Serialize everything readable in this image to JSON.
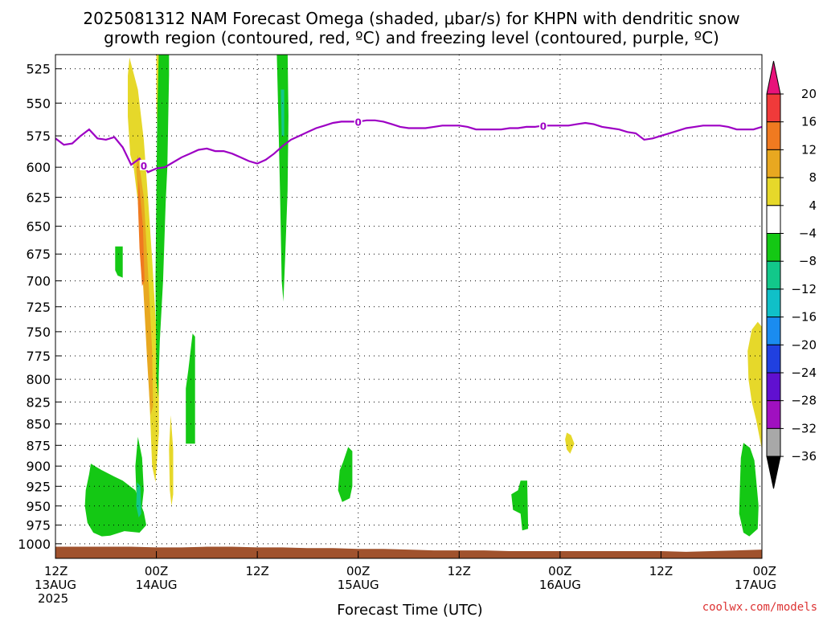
{
  "title": {
    "line1": "2025081312 NAM Forecast Omega (shaded, μbar/s) for KHPN with dendritic snow",
    "line2": "growth region (contoured, red, ºC) and freezing level (contoured, purple, ºC)"
  },
  "credit": "coolwx.com/models",
  "chart_data": {
    "type": "heatmap",
    "xlabel": "Forecast Time (UTC)",
    "xlim": [
      0,
      84
    ],
    "ylim": [
      1020,
      515
    ],
    "y_scale": "log-pressure",
    "grid": true,
    "y_ticks": [
      525,
      550,
      575,
      600,
      625,
      650,
      675,
      700,
      725,
      750,
      775,
      800,
      825,
      850,
      875,
      900,
      925,
      950,
      975,
      1000
    ],
    "x_ticks": [
      {
        "x": 0,
        "lines": [
          "12Z",
          "13AUG",
          "2025"
        ]
      },
      {
        "x": 12,
        "lines": [
          "00Z",
          "14AUG"
        ]
      },
      {
        "x": 24,
        "lines": [
          "12Z"
        ]
      },
      {
        "x": 36,
        "lines": [
          "00Z",
          "15AUG"
        ]
      },
      {
        "x": 48,
        "lines": [
          "12Z"
        ]
      },
      {
        "x": 60,
        "lines": [
          "00Z",
          "16AUG"
        ]
      },
      {
        "x": 72,
        "lines": [
          "12Z"
        ]
      },
      {
        "x": 84,
        "lines": [
          "00Z",
          "17AUG"
        ]
      }
    ],
    "colorbar": {
      "labels": [
        "20",
        "16",
        "12",
        "8",
        "4",
        "−4",
        "−8",
        "−12",
        "−16",
        "−20",
        "−24",
        "−28",
        "−32",
        "−36"
      ],
      "colors": {
        "top_arrow": "#e8127a",
        "c16_20": "#f03a3a",
        "c12_16": "#f07a20",
        "c8_12": "#e8a820",
        "c4_8": "#e6d82a",
        "c_neg4_4": "#ffffff",
        "c_neg8_neg4": "#14c814",
        "c_neg12_neg8": "#12c88a",
        "c_neg16_neg12": "#10c0c8",
        "c_neg20_neg16": "#1a8cf0",
        "c_neg24_neg20": "#2040e0",
        "c_neg28_neg24": "#6010d0",
        "c_neg32_neg28": "#a010c0",
        "c_neg36_neg32": "#a8a8a8",
        "bottom_arrow": "#000000"
      }
    },
    "freezing_level": {
      "color": "#9d00c4",
      "label": "0",
      "label_x": [
        10.5,
        36,
        58
      ],
      "points": [
        [
          0,
          577
        ],
        [
          1,
          582
        ],
        [
          2,
          581
        ],
        [
          3,
          575
        ],
        [
          4,
          570
        ],
        [
          5,
          577
        ],
        [
          6,
          578
        ],
        [
          7,
          576
        ],
        [
          8,
          584
        ],
        [
          9,
          598
        ],
        [
          10,
          593
        ],
        [
          11,
          604
        ],
        [
          12,
          601
        ],
        [
          13,
          600
        ],
        [
          14,
          596
        ],
        [
          15,
          592
        ],
        [
          16,
          589
        ],
        [
          17,
          586
        ],
        [
          18,
          585
        ],
        [
          19,
          587
        ],
        [
          20,
          587
        ],
        [
          21,
          589
        ],
        [
          22,
          592
        ],
        [
          23,
          595
        ],
        [
          24,
          597
        ],
        [
          25,
          594
        ],
        [
          26,
          589
        ],
        [
          27,
          583
        ],
        [
          28,
          578
        ],
        [
          29,
          575
        ],
        [
          30,
          572
        ],
        [
          31,
          569
        ],
        [
          32,
          567
        ],
        [
          33,
          565
        ],
        [
          34,
          564
        ],
        [
          35,
          564
        ],
        [
          36,
          564
        ],
        [
          37,
          563
        ],
        [
          38,
          563
        ],
        [
          39,
          564
        ],
        [
          40,
          566
        ],
        [
          41,
          568
        ],
        [
          42,
          569
        ],
        [
          43,
          569
        ],
        [
          44,
          569
        ],
        [
          45,
          568
        ],
        [
          46,
          567
        ],
        [
          47,
          567
        ],
        [
          48,
          567
        ],
        [
          49,
          568
        ],
        [
          50,
          570
        ],
        [
          51,
          570
        ],
        [
          52,
          570
        ],
        [
          53,
          570
        ],
        [
          54,
          569
        ],
        [
          55,
          569
        ],
        [
          56,
          568
        ],
        [
          57,
          568
        ],
        [
          58,
          567
        ],
        [
          59,
          567
        ],
        [
          60,
          567
        ],
        [
          61,
          567
        ],
        [
          62,
          566
        ],
        [
          63,
          565
        ],
        [
          64,
          566
        ],
        [
          65,
          568
        ],
        [
          66,
          569
        ],
        [
          67,
          570
        ],
        [
          68,
          572
        ],
        [
          69,
          573
        ],
        [
          70,
          578
        ],
        [
          71,
          577
        ],
        [
          72,
          575
        ],
        [
          73,
          573
        ],
        [
          74,
          571
        ],
        [
          75,
          569
        ],
        [
          76,
          568
        ],
        [
          77,
          567
        ],
        [
          78,
          567
        ],
        [
          79,
          567
        ],
        [
          80,
          568
        ],
        [
          81,
          570
        ],
        [
          82,
          570
        ],
        [
          83,
          570
        ],
        [
          84,
          568
        ]
      ]
    },
    "terrain": {
      "color": "#a0522d",
      "points": [
        [
          0,
          1004
        ],
        [
          3,
          1004
        ],
        [
          6,
          1004
        ],
        [
          9,
          1004
        ],
        [
          12,
          1005
        ],
        [
          15,
          1005
        ],
        [
          18,
          1004
        ],
        [
          21,
          1004
        ],
        [
          24,
          1005
        ],
        [
          27,
          1005
        ],
        [
          30,
          1006
        ],
        [
          33,
          1006
        ],
        [
          36,
          1007
        ],
        [
          39,
          1007
        ],
        [
          42,
          1008
        ],
        [
          45,
          1009
        ],
        [
          48,
          1009
        ],
        [
          51,
          1009
        ],
        [
          54,
          1010
        ],
        [
          57,
          1010
        ],
        [
          60,
          1010
        ],
        [
          63,
          1010
        ],
        [
          66,
          1010
        ],
        [
          69,
          1010
        ],
        [
          72,
          1010
        ],
        [
          75,
          1011
        ],
        [
          78,
          1010
        ],
        [
          81,
          1009
        ],
        [
          84,
          1008
        ]
      ]
    },
    "omega_regions": [
      {
        "level": "c_neg8_neg4",
        "points": [
          [
            4.2,
            897
          ],
          [
            5.5,
            905
          ],
          [
            7,
            913
          ],
          [
            8,
            918
          ],
          [
            9.5,
            930
          ],
          [
            10.5,
            958
          ],
          [
            10.8,
            975
          ],
          [
            10,
            985
          ],
          [
            8.2,
            983
          ],
          [
            6.5,
            989
          ],
          [
            5.5,
            990
          ],
          [
            4.5,
            985
          ],
          [
            3.8,
            972
          ],
          [
            3.5,
            950
          ],
          [
            3.6,
            930
          ],
          [
            4,
            910
          ]
        ]
      },
      {
        "level": "c_neg8_neg4",
        "points": [
          [
            9.8,
            865
          ],
          [
            10.3,
            890
          ],
          [
            10.5,
            930
          ],
          [
            10.2,
            960
          ],
          [
            9.8,
            965
          ],
          [
            9.6,
            930
          ],
          [
            9.5,
            900
          ]
        ]
      },
      {
        "level": "c_neg12_neg8",
        "points": [
          [
            9.7,
            920
          ],
          [
            10.1,
            925
          ],
          [
            10.2,
            960
          ],
          [
            9.9,
            965
          ],
          [
            9.6,
            950
          ]
        ]
      },
      {
        "level": "c_neg8_neg4",
        "points": [
          [
            7.1,
            668
          ],
          [
            8,
            668
          ],
          [
            8,
            697
          ],
          [
            7.4,
            695
          ],
          [
            7.1,
            690
          ]
        ]
      },
      {
        "level": "c4_8",
        "points": [
          [
            8.8,
            517
          ],
          [
            9.8,
            540
          ],
          [
            10.5,
            578
          ],
          [
            11,
            625
          ],
          [
            11.5,
            680
          ],
          [
            12,
            750
          ],
          [
            12.3,
            800
          ],
          [
            12.3,
            860
          ],
          [
            11.9,
            920
          ],
          [
            11.5,
            900
          ],
          [
            11.3,
            850
          ],
          [
            11,
            780
          ],
          [
            10.5,
            700
          ],
          [
            10,
            640
          ],
          [
            9.3,
            600
          ],
          [
            8.9,
            590
          ],
          [
            8.6,
            560
          ],
          [
            8.6,
            530
          ]
        ]
      },
      {
        "level": "c8_12",
        "points": [
          [
            9.8,
            590
          ],
          [
            10.5,
            625
          ],
          [
            11,
            690
          ],
          [
            11.5,
            770
          ],
          [
            11.6,
            830
          ],
          [
            11.3,
            840
          ],
          [
            10.9,
            780
          ],
          [
            10.4,
            700
          ],
          [
            9.9,
            640
          ],
          [
            9.6,
            600
          ]
        ]
      },
      {
        "level": "c12_16",
        "points": [
          [
            9.9,
            610
          ],
          [
            10.4,
            650
          ],
          [
            10.6,
            700
          ],
          [
            10.3,
            705
          ],
          [
            10,
            670
          ],
          [
            9.8,
            630
          ]
        ]
      },
      {
        "level": "c4_8",
        "points": [
          [
            12,
            475
          ],
          [
            12.6,
            490
          ],
          [
            12.7,
            540
          ],
          [
            12.6,
            575
          ],
          [
            12.2,
            590
          ],
          [
            12,
            550
          ]
        ]
      },
      {
        "level": "c_neg8_neg4",
        "points": [
          [
            12.5,
            470
          ],
          [
            13.5,
            470
          ],
          [
            13.5,
            530
          ],
          [
            13.3,
            600
          ],
          [
            13.1,
            630
          ],
          [
            12.8,
            700
          ],
          [
            12.4,
            760
          ],
          [
            12.2,
            820
          ],
          [
            12,
            800
          ],
          [
            11.9,
            700
          ],
          [
            12,
            620
          ],
          [
            12.1,
            560
          ],
          [
            12.3,
            510
          ]
        ]
      },
      {
        "level": "c4_8",
        "points": [
          [
            13.7,
            840
          ],
          [
            14,
            880
          ],
          [
            14,
            935
          ],
          [
            13.8,
            950
          ],
          [
            13.6,
            930
          ],
          [
            13.5,
            880
          ]
        ]
      },
      {
        "level": "c_neg8_neg4",
        "points": [
          [
            16.3,
            752
          ],
          [
            16.6,
            755
          ],
          [
            16.6,
            873
          ],
          [
            15.5,
            873
          ],
          [
            15.5,
            810
          ],
          [
            15.8,
            790
          ]
        ]
      },
      {
        "level": "c_neg8_neg4",
        "points": [
          [
            26.3,
            510
          ],
          [
            27.6,
            510
          ],
          [
            27.7,
            560
          ],
          [
            27.6,
            620
          ],
          [
            27.3,
            680
          ],
          [
            27.1,
            720
          ],
          [
            26.9,
            700
          ],
          [
            26.7,
            620
          ],
          [
            26.5,
            560
          ]
        ]
      },
      {
        "level": "c_neg12_neg8",
        "points": [
          [
            26.8,
            540
          ],
          [
            27.2,
            540
          ],
          [
            27.2,
            575
          ],
          [
            26.9,
            575
          ]
        ]
      },
      {
        "level": "c_neg8_neg4",
        "points": [
          [
            34.8,
            877
          ],
          [
            35.3,
            882
          ],
          [
            35.3,
            925
          ],
          [
            35,
            940
          ],
          [
            34.1,
            945
          ],
          [
            33.6,
            930
          ],
          [
            33.8,
            905
          ],
          [
            34.2,
            895
          ]
        ]
      },
      {
        "level": "c_neg8_neg4",
        "points": [
          [
            55.3,
            918
          ],
          [
            56.1,
            918
          ],
          [
            56.2,
            980
          ],
          [
            55.5,
            982
          ],
          [
            55.3,
            960
          ],
          [
            54.4,
            955
          ],
          [
            54.2,
            935
          ],
          [
            55,
            930
          ]
        ]
      },
      {
        "level": "c4_8",
        "points": [
          [
            60.8,
            860
          ],
          [
            61.3,
            863
          ],
          [
            61.7,
            873
          ],
          [
            61.2,
            885
          ],
          [
            60.8,
            880
          ],
          [
            60.6,
            868
          ]
        ]
      },
      {
        "level": "c4_8",
        "points": [
          [
            84,
            745
          ],
          [
            83.5,
            740
          ],
          [
            82.8,
            748
          ],
          [
            82.3,
            770
          ],
          [
            82.4,
            800
          ],
          [
            82.8,
            825
          ],
          [
            83.3,
            845
          ],
          [
            84,
            880
          ]
        ]
      },
      {
        "level": "c_neg8_neg4",
        "points": [
          [
            81.8,
            872
          ],
          [
            82.6,
            878
          ],
          [
            83.1,
            893
          ],
          [
            83.3,
            915
          ],
          [
            83.6,
            950
          ],
          [
            83.5,
            980
          ],
          [
            82.5,
            990
          ],
          [
            81.8,
            985
          ],
          [
            81.3,
            960
          ],
          [
            81.4,
            920
          ],
          [
            81.5,
            890
          ]
        ]
      }
    ]
  }
}
